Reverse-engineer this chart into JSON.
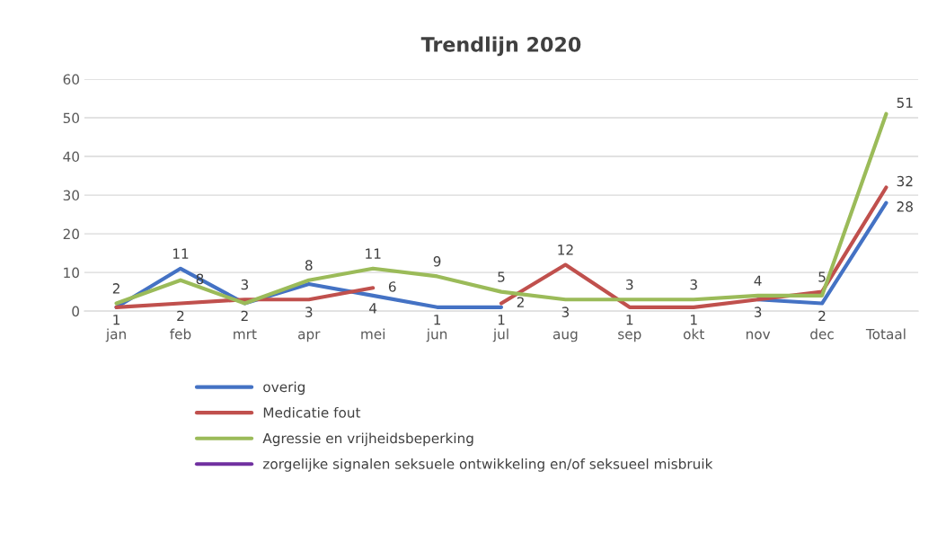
{
  "chart_data": {
    "type": "line",
    "title": "Trendlijn 2020",
    "categories": [
      "jan",
      "feb",
      "mrt",
      "apr",
      "mei",
      "jun",
      "jul",
      "aug",
      "sep",
      "okt",
      "nov",
      "dec",
      "Totaal"
    ],
    "series": [
      {
        "name": "overig",
        "color": "#4472c4",
        "values": [
          1,
          11,
          2,
          7,
          4,
          1,
          1,
          null,
          null,
          null,
          3,
          2,
          28
        ],
        "value_labels": [
          null,
          "11",
          null,
          null,
          "4",
          "1",
          "1",
          null,
          null,
          null,
          "3",
          "2",
          "28"
        ]
      },
      {
        "name": "Medicatie fout",
        "color": "#c0504d",
        "values": [
          1,
          2,
          3,
          3,
          6,
          null,
          2,
          12,
          1,
          1,
          3,
          5,
          32
        ],
        "value_labels": [
          "1",
          "2",
          "3",
          "3",
          "6",
          null,
          "2",
          "12",
          "1",
          "1",
          null,
          "5",
          "32"
        ]
      },
      {
        "name": "Agressie en vrijheidsbeperking",
        "color": "#9bbb59",
        "values": [
          2,
          8,
          2,
          8,
          11,
          9,
          5,
          3,
          3,
          3,
          4,
          4,
          51
        ],
        "value_labels": [
          "2",
          "8",
          "2",
          "8",
          "11",
          "9",
          "5",
          "3",
          "3",
          "3",
          "4",
          null,
          "51"
        ]
      },
      {
        "name": "zorgelijke signalen seksuele ontwikkeling en/of seksueel misbruik",
        "color": "#7030a0",
        "values": [
          null,
          null,
          null,
          null,
          null,
          null,
          null,
          null,
          null,
          null,
          null,
          null,
          null
        ]
      }
    ],
    "ylim": [
      0,
      60
    ],
    "yticks": [
      0,
      10,
      20,
      30,
      40,
      50,
      60
    ],
    "grid": "y",
    "legend": "bottom",
    "marker": "none",
    "line_style": "solid"
  }
}
